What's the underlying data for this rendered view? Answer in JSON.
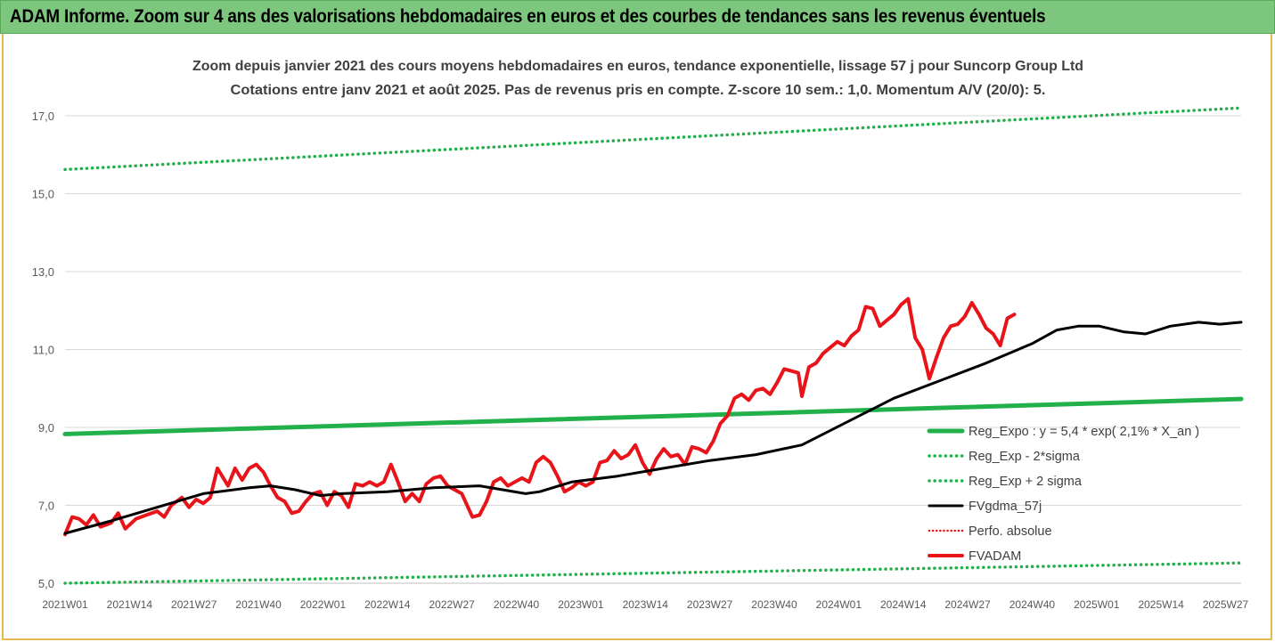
{
  "banner": {
    "title": "ADAM Informe. Zoom sur 4 ans des valorisations hebdomadaires en euros et des courbes de tendances sans les revenus éventuels"
  },
  "chart_data": {
    "type": "line",
    "title": "Zoom depuis janvier 2021 des cours moyens hebdomadaires en euros, tendance exponentielle, lissage 57 j pour Suncorp Group Ltd",
    "subtitle": "Cotations entre janv 2021 et août 2025.  Pas de revenus pris en compte. Z-score 10 sem.: 1,0. Momentum A/V (20/0): 5.",
    "xlabel": "",
    "ylabel": "",
    "ylim": [
      5.0,
      17.5
    ],
    "yticks": [
      "5,0",
      "7,0",
      "9,0",
      "11,0",
      "13,0",
      "15,0",
      "17,0"
    ],
    "ytick_values": [
      5,
      7,
      9,
      11,
      13,
      15,
      17
    ],
    "xtick_labels": [
      "2021W01",
      "2021W14",
      "2021W27",
      "2021W40",
      "2022W01",
      "2022W14",
      "2022W27",
      "2022W40",
      "2023W01",
      "2023W14",
      "2023W27",
      "2023W40",
      "2024W01",
      "2024W14",
      "2024W27",
      "2024W40",
      "2025W01",
      "2025W14",
      "2025W27"
    ],
    "n_points": 234,
    "grid": "horizontal",
    "legend_position": "right",
    "series": [
      {
        "name": "Reg_Expo : y = 5,4 * exp( 2,1% *  X_an )",
        "color": "#22b04b",
        "style": "solid",
        "start": 8.83,
        "end": 9.73
      },
      {
        "name": "Reg_Exp - 2*sigma",
        "color": "#22b04b",
        "style": "dotted",
        "start": 5.0,
        "end": 5.52
      },
      {
        "name": "Reg_Exp + 2 sigma",
        "color": "#22b04b",
        "style": "dotted",
        "start": 15.62,
        "end": 17.2
      },
      {
        "name": "FVgdma_57j",
        "color": "#000000",
        "style": "solid",
        "points": [
          [
            0,
            6.28
          ],
          [
            13,
            6.6
          ],
          [
            26,
            6.95
          ],
          [
            39,
            7.3
          ],
          [
            52,
            7.45
          ],
          [
            58,
            7.5
          ],
          [
            65,
            7.4
          ],
          [
            72,
            7.25
          ],
          [
            78,
            7.3
          ],
          [
            91,
            7.35
          ],
          [
            104,
            7.45
          ],
          [
            117,
            7.5
          ],
          [
            130,
            7.3
          ],
          [
            134,
            7.35
          ],
          [
            143,
            7.6
          ],
          [
            156,
            7.75
          ],
          [
            169,
            7.95
          ],
          [
            182,
            8.15
          ],
          [
            195,
            8.3
          ],
          [
            208,
            8.55
          ],
          [
            221,
            9.15
          ],
          [
            234,
            9.75
          ],
          [
            247,
            10.2
          ],
          [
            260,
            10.65
          ],
          [
            273,
            11.15
          ],
          [
            280,
            11.5
          ],
          [
            286,
            11.6
          ],
          [
            292,
            11.6
          ],
          [
            299,
            11.45
          ],
          [
            305,
            11.4
          ],
          [
            312,
            11.6
          ],
          [
            320,
            11.7
          ],
          [
            326,
            11.65
          ],
          [
            332,
            11.7
          ]
        ]
      },
      {
        "name": "Perfo. absolue",
        "color": "#e31a1c",
        "style": "dotted"
      },
      {
        "name": "FVADAM",
        "color": "#e8141a",
        "style": "solid",
        "points": [
          [
            0,
            6.25
          ],
          [
            2,
            6.7
          ],
          [
            4,
            6.65
          ],
          [
            6,
            6.5
          ],
          [
            8,
            6.75
          ],
          [
            10,
            6.45
          ],
          [
            13,
            6.55
          ],
          [
            15,
            6.8
          ],
          [
            17,
            6.4
          ],
          [
            20,
            6.65
          ],
          [
            23,
            6.75
          ],
          [
            26,
            6.85
          ],
          [
            28,
            6.7
          ],
          [
            30,
            7.0
          ],
          [
            33,
            7.2
          ],
          [
            35,
            6.95
          ],
          [
            37,
            7.15
          ],
          [
            39,
            7.05
          ],
          [
            41,
            7.2
          ],
          [
            43,
            7.95
          ],
          [
            46,
            7.5
          ],
          [
            48,
            7.95
          ],
          [
            50,
            7.65
          ],
          [
            52,
            7.95
          ],
          [
            54,
            8.05
          ],
          [
            56,
            7.85
          ],
          [
            58,
            7.5
          ],
          [
            60,
            7.2
          ],
          [
            62,
            7.1
          ],
          [
            64,
            6.8
          ],
          [
            66,
            6.85
          ],
          [
            68,
            7.1
          ],
          [
            70,
            7.3
          ],
          [
            72,
            7.35
          ],
          [
            74,
            7.0
          ],
          [
            76,
            7.35
          ],
          [
            78,
            7.25
          ],
          [
            80,
            6.95
          ],
          [
            82,
            7.55
          ],
          [
            84,
            7.5
          ],
          [
            86,
            7.6
          ],
          [
            88,
            7.5
          ],
          [
            90,
            7.6
          ],
          [
            92,
            8.05
          ],
          [
            94,
            7.6
          ],
          [
            96,
            7.1
          ],
          [
            98,
            7.3
          ],
          [
            100,
            7.1
          ],
          [
            102,
            7.55
          ],
          [
            104,
            7.7
          ],
          [
            106,
            7.75
          ],
          [
            108,
            7.5
          ],
          [
            110,
            7.4
          ],
          [
            112,
            7.3
          ],
          [
            115,
            6.7
          ],
          [
            117,
            6.75
          ],
          [
            119,
            7.1
          ],
          [
            121,
            7.6
          ],
          [
            123,
            7.7
          ],
          [
            125,
            7.5
          ],
          [
            127,
            7.6
          ],
          [
            129,
            7.7
          ],
          [
            131,
            7.6
          ],
          [
            133,
            8.1
          ],
          [
            135,
            8.25
          ],
          [
            137,
            8.1
          ],
          [
            139,
            7.75
          ],
          [
            141,
            7.35
          ],
          [
            143,
            7.45
          ],
          [
            145,
            7.6
          ],
          [
            147,
            7.5
          ],
          [
            149,
            7.6
          ],
          [
            151,
            8.1
          ],
          [
            153,
            8.15
          ],
          [
            155,
            8.4
          ],
          [
            157,
            8.2
          ],
          [
            159,
            8.3
          ],
          [
            161,
            8.55
          ],
          [
            163,
            8.1
          ],
          [
            165,
            7.8
          ],
          [
            167,
            8.2
          ],
          [
            169,
            8.45
          ],
          [
            171,
            8.25
          ],
          [
            173,
            8.3
          ],
          [
            175,
            8.05
          ],
          [
            177,
            8.5
          ],
          [
            179,
            8.45
          ],
          [
            181,
            8.35
          ],
          [
            183,
            8.65
          ],
          [
            185,
            9.1
          ],
          [
            187,
            9.3
          ],
          [
            189,
            9.75
          ],
          [
            191,
            9.85
          ],
          [
            193,
            9.7
          ],
          [
            195,
            9.95
          ],
          [
            197,
            10.0
          ],
          [
            199,
            9.85
          ],
          [
            201,
            10.15
          ],
          [
            203,
            10.5
          ],
          [
            205,
            10.45
          ],
          [
            207,
            10.4
          ],
          [
            208,
            9.8
          ],
          [
            210,
            10.55
          ],
          [
            212,
            10.65
          ],
          [
            214,
            10.9
          ],
          [
            216,
            11.05
          ],
          [
            218,
            11.2
          ],
          [
            220,
            11.1
          ],
          [
            222,
            11.35
          ],
          [
            224,
            11.5
          ],
          [
            226,
            12.1
          ],
          [
            228,
            12.05
          ],
          [
            230,
            11.6
          ],
          [
            232,
            11.75
          ],
          [
            234,
            11.9
          ],
          [
            236,
            12.15
          ],
          [
            238,
            12.3
          ],
          [
            240,
            11.3
          ],
          [
            242,
            11.0
          ],
          [
            244,
            10.25
          ],
          [
            246,
            10.8
          ],
          [
            248,
            11.3
          ],
          [
            250,
            11.6
          ],
          [
            252,
            11.65
          ],
          [
            254,
            11.85
          ],
          [
            256,
            12.2
          ],
          [
            258,
            11.9
          ],
          [
            260,
            11.55
          ],
          [
            262,
            11.4
          ],
          [
            264,
            11.1
          ],
          [
            266,
            11.8
          ],
          [
            268,
            11.9
          ]
        ]
      }
    ]
  },
  "colors": {
    "banner_bg": "#7dc67d",
    "frame_border": "#e6b94a",
    "grid": "#d9d9d9",
    "axis_text": "#595959",
    "title_text": "#404040"
  }
}
